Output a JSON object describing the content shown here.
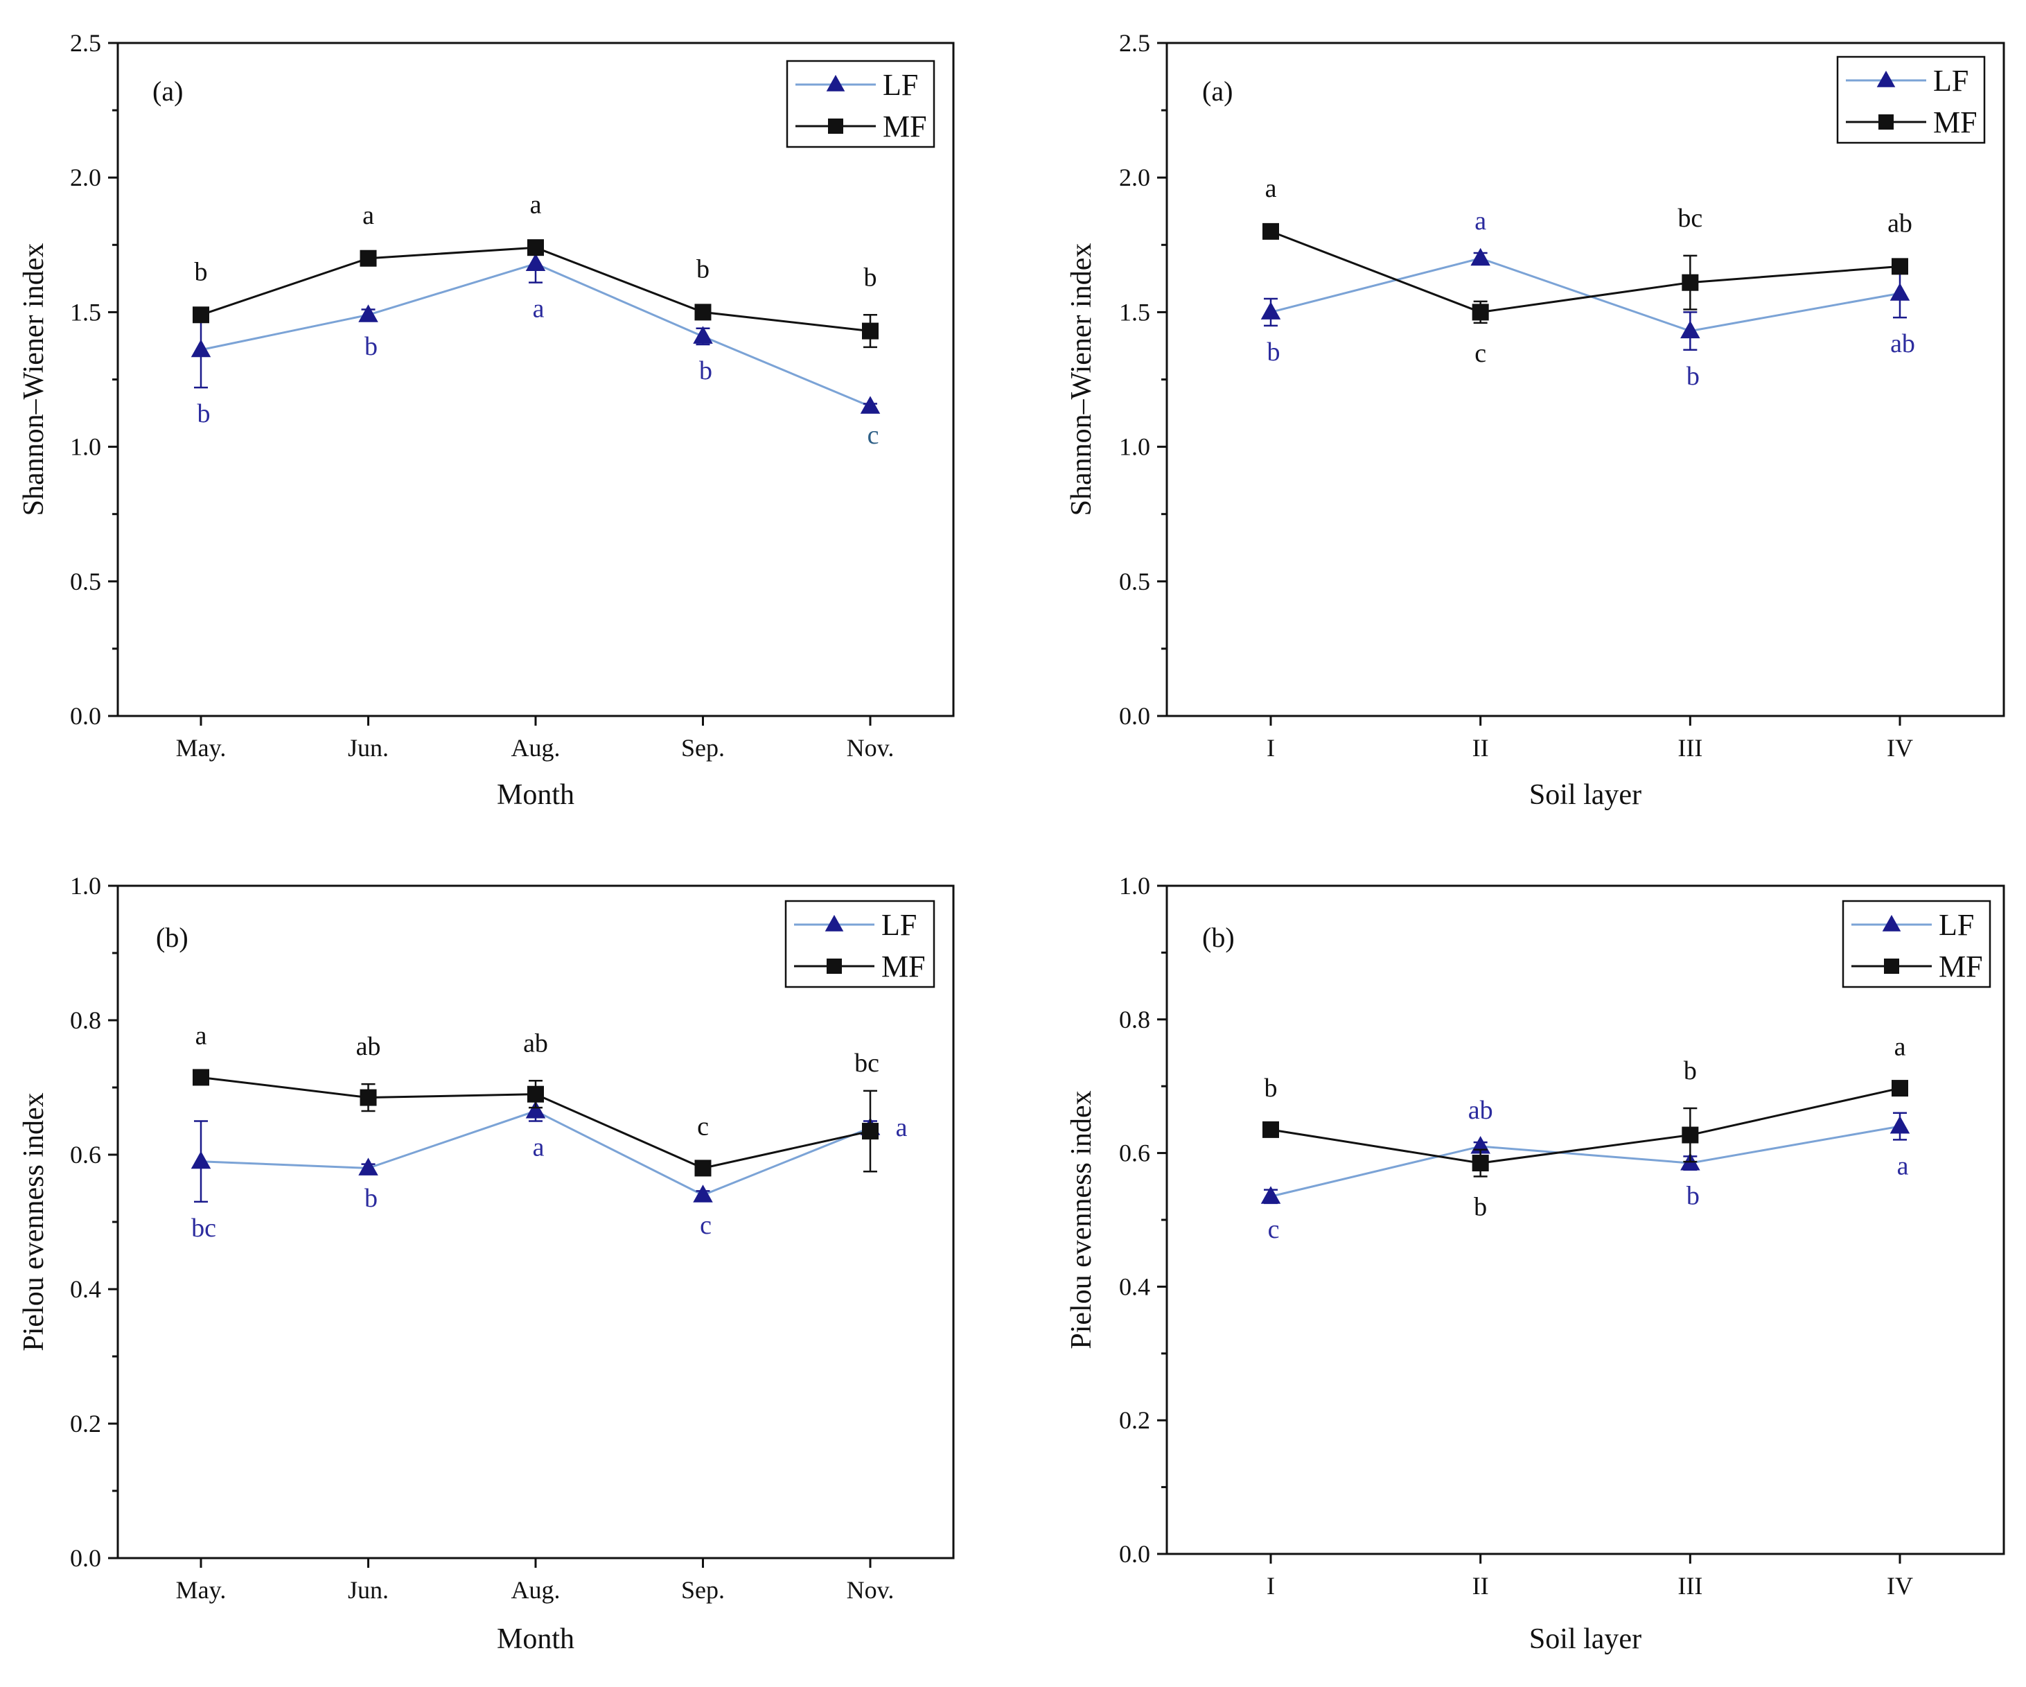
{
  "colors": {
    "LF_line": "#7ba3d6",
    "LF_marker": "#1a1a8c",
    "LF_letter": "#2b2b9e",
    "LF_letter_c": "#2e5f86",
    "MF": "#111111"
  },
  "chart_data": [
    {
      "id": "top-left",
      "type": "line",
      "panel_label": "(a)",
      "xlabel": "Month",
      "ylabel": "Shannon–Wiener index",
      "categories": [
        "May.",
        "Jun.",
        "Aug.",
        "Sep.",
        "Nov."
      ],
      "ylim": [
        0,
        2.5
      ],
      "yticks": [
        "0.0",
        "0.5",
        "1.0",
        "1.5",
        "2.0",
        "2.5"
      ],
      "legend": [
        "LF",
        "MF"
      ],
      "series": [
        {
          "name": "LF",
          "values": [
            1.36,
            1.49,
            1.68,
            1.41,
            1.15
          ],
          "errors": [
            0.14,
            0.02,
            0.07,
            0.03,
            0.01
          ],
          "letters": [
            "b",
            "b",
            "a",
            "b",
            "c"
          ]
        },
        {
          "name": "MF",
          "values": [
            1.49,
            1.7,
            1.74,
            1.5,
            1.43
          ],
          "errors": [
            0.02,
            0.02,
            0.02,
            0.02,
            0.06
          ],
          "letters": [
            "b",
            "a",
            "a",
            "b",
            "b"
          ]
        }
      ]
    },
    {
      "id": "top-right",
      "type": "line",
      "panel_label": "(a)",
      "xlabel": "Soil layer",
      "ylabel": "Shannon–Wiener index",
      "categories": [
        "I",
        "II",
        "III",
        "IV"
      ],
      "ylim": [
        0,
        2.5
      ],
      "yticks": [
        "0.0",
        "0.5",
        "1.0",
        "1.5",
        "2.0",
        "2.5"
      ],
      "legend": [
        "LF",
        "MF"
      ],
      "series": [
        {
          "name": "LF",
          "values": [
            1.5,
            1.7,
            1.43,
            1.57
          ],
          "errors": [
            0.05,
            0.02,
            0.07,
            0.09
          ],
          "letters": [
            "b",
            "a",
            "b",
            "ab"
          ]
        },
        {
          "name": "MF",
          "values": [
            1.8,
            1.5,
            1.61,
            1.67
          ],
          "errors": [
            0.02,
            0.04,
            0.1,
            0.02
          ],
          "letters": [
            "a",
            "c",
            "bc",
            "ab"
          ]
        }
      ]
    },
    {
      "id": "bottom-left",
      "type": "line",
      "panel_label": "(b)",
      "xlabel": "Month",
      "ylabel": "Pielou evenness index",
      "categories": [
        "May.",
        "Jun.",
        "Aug.",
        "Sep.",
        "Nov."
      ],
      "ylim": [
        0,
        1.0
      ],
      "yticks": [
        "0.0",
        "0.2",
        "0.4",
        "0.6",
        "0.8",
        "1.0"
      ],
      "legend": [
        "LF",
        "MF"
      ],
      "series": [
        {
          "name": "LF",
          "values": [
            0.59,
            0.58,
            0.665,
            0.54,
            0.64
          ],
          "errors": [
            0.06,
            0.006,
            0.015,
            0.006,
            0.01
          ],
          "letters": [
            "bc",
            "b",
            "a",
            "c",
            "a"
          ]
        },
        {
          "name": "MF",
          "values": [
            0.715,
            0.685,
            0.69,
            0.58,
            0.635
          ],
          "errors": [
            0.006,
            0.02,
            0.02,
            0.006,
            0.06
          ],
          "letters": [
            "a",
            "ab",
            "ab",
            "c",
            "bc"
          ]
        }
      ]
    },
    {
      "id": "bottom-right",
      "type": "line",
      "panel_label": "(b)",
      "xlabel": "Soil layer",
      "ylabel": "Pielou evenness index",
      "categories": [
        "I",
        "II",
        "III",
        "IV"
      ],
      "ylim": [
        0,
        1.0
      ],
      "yticks": [
        "0.0",
        "0.2",
        "0.4",
        "0.6",
        "0.8",
        "1.0"
      ],
      "legend": [
        "LF",
        "MF"
      ],
      "series": [
        {
          "name": "LF",
          "values": [
            0.535,
            0.61,
            0.585,
            0.64
          ],
          "errors": [
            0.01,
            0.006,
            0.01,
            0.02
          ],
          "letters": [
            "c",
            "ab",
            "b",
            "a"
          ]
        },
        {
          "name": "MF",
          "values": [
            0.635,
            0.585,
            0.627,
            0.697
          ],
          "errors": [
            0.006,
            0.02,
            0.04,
            0.006
          ],
          "letters": [
            "b",
            "b",
            "b",
            "a"
          ]
        }
      ]
    }
  ]
}
